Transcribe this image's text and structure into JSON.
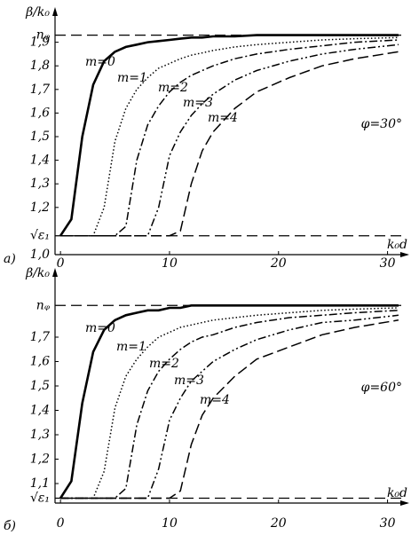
{
  "chart_data": [
    {
      "type": "line",
      "panel_label": "а)",
      "annotation": "φ=30°",
      "y_label": "β/k₀",
      "x_label": "k₀d",
      "xlim": [
        -0.5,
        31.5
      ],
      "xticks": [
        0,
        10,
        20,
        30
      ],
      "ylim": [
        1.0,
        1.97
      ],
      "yticks": [
        {
          "value": 1.0,
          "label": "1,0"
        },
        {
          "value": 1.2,
          "label": "1,2"
        },
        {
          "value": 1.3,
          "label": "1,3"
        },
        {
          "value": 1.4,
          "label": "1,4"
        },
        {
          "value": 1.5,
          "label": "1,5"
        },
        {
          "value": 1.6,
          "label": "1,6"
        },
        {
          "value": 1.7,
          "label": "1,7"
        },
        {
          "value": 1.8,
          "label": "1,8"
        },
        {
          "value": 1.9,
          "label": "1,9"
        }
      ],
      "hlines": [
        {
          "value": 1.93,
          "label": "nᵩ"
        },
        {
          "value": 1.08,
          "label": "√ε₁"
        }
      ],
      "x": [
        0,
        1,
        2,
        3,
        4,
        5,
        6,
        7,
        8,
        9,
        10,
        11,
        12,
        13,
        14,
        16,
        18,
        21,
        24,
        27,
        31
      ],
      "series": [
        {
          "name": "m=0",
          "color": "#000000",
          "style": "solid",
          "values": [
            1.08,
            1.15,
            1.5,
            1.72,
            1.82,
            1.86,
            1.88,
            1.89,
            1.9,
            1.905,
            1.91,
            1.915,
            1.92,
            1.92,
            1.925,
            1.925,
            1.93,
            1.93,
            1.93,
            1.93,
            1.93
          ]
        },
        {
          "name": "m=1",
          "color": "#000000",
          "style": "dotted",
          "values": [
            1.08,
            1.08,
            1.08,
            1.08,
            1.2,
            1.48,
            1.62,
            1.7,
            1.75,
            1.79,
            1.81,
            1.83,
            1.845,
            1.855,
            1.865,
            1.88,
            1.89,
            1.9,
            1.91,
            1.915,
            1.92
          ]
        },
        {
          "name": "m=2",
          "color": "#000000",
          "style": "dashdot",
          "values": [
            1.08,
            1.08,
            1.08,
            1.08,
            1.08,
            1.08,
            1.12,
            1.4,
            1.55,
            1.63,
            1.69,
            1.73,
            1.76,
            1.78,
            1.8,
            1.83,
            1.85,
            1.87,
            1.885,
            1.9,
            1.91
          ]
        },
        {
          "name": "m=3",
          "color": "#000000",
          "style": "dashdotdot",
          "values": [
            1.08,
            1.08,
            1.08,
            1.08,
            1.08,
            1.08,
            1.08,
            1.08,
            1.08,
            1.2,
            1.42,
            1.52,
            1.59,
            1.64,
            1.68,
            1.74,
            1.78,
            1.82,
            1.85,
            1.87,
            1.89
          ]
        },
        {
          "name": "m=4",
          "color": "#000000",
          "style": "dashed",
          "values": [
            1.08,
            1.08,
            1.08,
            1.08,
            1.08,
            1.08,
            1.08,
            1.08,
            1.08,
            1.08,
            1.08,
            1.1,
            1.3,
            1.44,
            1.52,
            1.62,
            1.69,
            1.75,
            1.8,
            1.83,
            1.86
          ]
        }
      ]
    },
    {
      "type": "line",
      "panel_label": "б)",
      "annotation": "φ=60°",
      "y_label": "β/k₀",
      "x_label": "k₀d",
      "xlim": [
        -0.5,
        31.5
      ],
      "xticks": [
        0,
        10,
        20,
        30
      ],
      "ylim": [
        1.02,
        1.86
      ],
      "yticks": [
        {
          "value": 1.1,
          "label": "1,1"
        },
        {
          "value": 1.2,
          "label": "1,2"
        },
        {
          "value": 1.3,
          "label": "1,3"
        },
        {
          "value": 1.4,
          "label": "1,4"
        },
        {
          "value": 1.5,
          "label": "1,5"
        },
        {
          "value": 1.6,
          "label": "1,6"
        },
        {
          "value": 1.7,
          "label": "1,7"
        }
      ],
      "hlines": [
        {
          "value": 1.83,
          "label": "nᵩ"
        },
        {
          "value": 1.04,
          "label": "√ε₁"
        }
      ],
      "x": [
        0,
        1,
        2,
        3,
        4,
        5,
        6,
        7,
        8,
        9,
        10,
        11,
        12,
        13,
        14,
        16,
        18,
        21,
        24,
        27,
        31
      ],
      "series": [
        {
          "name": "m=0",
          "color": "#000000",
          "style": "solid",
          "values": [
            1.04,
            1.11,
            1.43,
            1.64,
            1.73,
            1.77,
            1.79,
            1.8,
            1.81,
            1.81,
            1.82,
            1.82,
            1.83,
            1.83,
            1.83,
            1.83,
            1.83,
            1.83,
            1.83,
            1.83,
            1.83
          ]
        },
        {
          "name": "m=1",
          "color": "#000000",
          "style": "dotted",
          "values": [
            1.04,
            1.04,
            1.04,
            1.04,
            1.15,
            1.41,
            1.54,
            1.61,
            1.66,
            1.7,
            1.72,
            1.74,
            1.75,
            1.76,
            1.77,
            1.78,
            1.79,
            1.8,
            1.81,
            1.815,
            1.82
          ]
        },
        {
          "name": "m=2",
          "color": "#000000",
          "style": "dashdot",
          "values": [
            1.04,
            1.04,
            1.04,
            1.04,
            1.04,
            1.04,
            1.08,
            1.34,
            1.48,
            1.56,
            1.61,
            1.65,
            1.68,
            1.7,
            1.71,
            1.74,
            1.76,
            1.78,
            1.79,
            1.8,
            1.81
          ]
        },
        {
          "name": "m=3",
          "color": "#000000",
          "style": "dashdotdot",
          "values": [
            1.04,
            1.04,
            1.04,
            1.04,
            1.04,
            1.04,
            1.04,
            1.04,
            1.04,
            1.16,
            1.36,
            1.45,
            1.52,
            1.56,
            1.6,
            1.65,
            1.69,
            1.73,
            1.76,
            1.77,
            1.79
          ]
        },
        {
          "name": "m=4",
          "color": "#000000",
          "style": "dashed",
          "values": [
            1.04,
            1.04,
            1.04,
            1.04,
            1.04,
            1.04,
            1.04,
            1.04,
            1.04,
            1.04,
            1.04,
            1.07,
            1.26,
            1.38,
            1.45,
            1.54,
            1.61,
            1.66,
            1.71,
            1.74,
            1.77
          ]
        }
      ]
    }
  ]
}
